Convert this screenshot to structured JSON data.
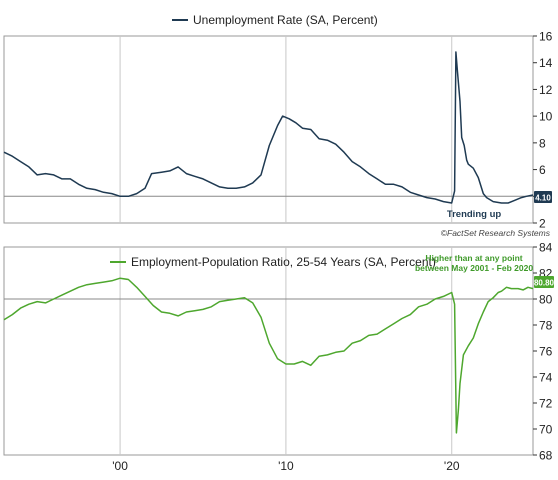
{
  "colors": {
    "unemployment": "#1f3a52",
    "epop": "#4ea72e",
    "epop_label": "#3f9a2a",
    "grid": "#c8c8c8",
    "axis": "#333333"
  },
  "source_note": "©FactSet Research Systems",
  "x_axis": {
    "ticks": [
      2000,
      2010,
      2020
    ],
    "tick_labels": [
      "'00",
      "'10",
      "'20"
    ]
  },
  "chart_data": [
    {
      "type": "line",
      "series": [
        {
          "name": "Unemployment Rate (SA, Percent)"
        }
      ],
      "ylim": [
        2,
        16
      ],
      "yticks": [
        2,
        4,
        6,
        8,
        10,
        12,
        14,
        16
      ],
      "xlim": [
        1993,
        2024.9
      ],
      "legend": "top-left",
      "grid": "vertical and y=4 reference line",
      "last_value_label": "4.10",
      "annotation": "Trending up",
      "x": [
        1993.0,
        1993.5,
        1994.0,
        1994.5,
        1995.0,
        1995.5,
        1996.0,
        1996.5,
        1997.0,
        1997.5,
        1998.0,
        1998.5,
        1999.0,
        1999.5,
        2000.0,
        2000.5,
        2001.0,
        2001.5,
        2001.9,
        2002.5,
        2003.0,
        2003.5,
        2004.0,
        2004.5,
        2005.0,
        2005.5,
        2006.0,
        2006.5,
        2007.0,
        2007.5,
        2008.0,
        2008.5,
        2009.0,
        2009.5,
        2009.8,
        2010.2,
        2010.6,
        2011.0,
        2011.5,
        2012.0,
        2012.5,
        2013.0,
        2013.5,
        2014.0,
        2014.5,
        2015.0,
        2015.5,
        2016.0,
        2016.5,
        2017.0,
        2017.5,
        2018.0,
        2018.5,
        2019.0,
        2019.5,
        2020.0,
        2020.17,
        2020.25,
        2020.35,
        2020.5,
        2020.6,
        2020.75,
        2020.9,
        2021.0,
        2021.3,
        2021.6,
        2021.9,
        2022.1,
        2022.5,
        2023.0,
        2023.4,
        2023.8,
        2024.2,
        2024.5,
        2024.9
      ],
      "y": [
        7.3,
        7.0,
        6.6,
        6.2,
        5.6,
        5.7,
        5.6,
        5.3,
        5.3,
        4.9,
        4.6,
        4.5,
        4.3,
        4.2,
        4.0,
        4.0,
        4.2,
        4.6,
        5.7,
        5.8,
        5.9,
        6.2,
        5.7,
        5.5,
        5.3,
        5.0,
        4.7,
        4.6,
        4.6,
        4.7,
        5.0,
        5.6,
        7.8,
        9.3,
        10.0,
        9.8,
        9.5,
        9.1,
        9.0,
        8.3,
        8.2,
        7.9,
        7.3,
        6.6,
        6.2,
        5.7,
        5.3,
        4.9,
        4.9,
        4.7,
        4.3,
        4.1,
        3.9,
        3.8,
        3.6,
        3.5,
        4.4,
        14.8,
        13.3,
        11.1,
        8.4,
        7.8,
        6.7,
        6.4,
        6.1,
        5.4,
        4.2,
        3.9,
        3.6,
        3.5,
        3.5,
        3.7,
        3.9,
        4.0,
        4.1
      ]
    },
    {
      "type": "line",
      "series": [
        {
          "name": "Employment-Population Ratio, 25-54 Years (SA, Percent)"
        }
      ],
      "ylim": [
        68,
        84
      ],
      "yticks": [
        68,
        70,
        72,
        74,
        76,
        78,
        80,
        82,
        84
      ],
      "xlim": [
        1993,
        2024.9
      ],
      "legend": "top-left",
      "grid": "vertical and y=80 reference line",
      "last_value_label": "80.80",
      "annotation": [
        "Higher than at any point",
        "between May 2001 - Feb 2020"
      ],
      "x": [
        1993.0,
        1993.5,
        1994.0,
        1994.5,
        1995.0,
        1995.5,
        1996.0,
        1996.5,
        1997.0,
        1997.5,
        1998.0,
        1998.5,
        1999.0,
        1999.5,
        2000.0,
        2000.5,
        2001.0,
        2001.5,
        2002.0,
        2002.5,
        2003.0,
        2003.5,
        2004.0,
        2004.5,
        2005.0,
        2005.5,
        2006.0,
        2006.5,
        2007.0,
        2007.5,
        2008.0,
        2008.5,
        2009.0,
        2009.5,
        2010.0,
        2010.5,
        2011.0,
        2011.5,
        2012.0,
        2012.5,
        2013.0,
        2013.5,
        2014.0,
        2014.5,
        2015.0,
        2015.5,
        2016.0,
        2016.5,
        2017.0,
        2017.5,
        2018.0,
        2018.5,
        2019.0,
        2019.5,
        2020.0,
        2020.17,
        2020.28,
        2020.4,
        2020.5,
        2020.7,
        2021.0,
        2021.3,
        2021.6,
        2021.9,
        2022.2,
        2022.5,
        2022.8,
        2023.0,
        2023.3,
        2023.6,
        2024.0,
        2024.3,
        2024.6,
        2024.9
      ],
      "y": [
        78.4,
        78.8,
        79.3,
        79.6,
        79.8,
        79.7,
        80.0,
        80.3,
        80.6,
        80.9,
        81.1,
        81.2,
        81.3,
        81.4,
        81.6,
        81.5,
        80.9,
        80.2,
        79.5,
        79.0,
        78.9,
        78.7,
        79.0,
        79.1,
        79.2,
        79.4,
        79.8,
        79.9,
        80.0,
        80.1,
        79.7,
        78.6,
        76.6,
        75.4,
        75.0,
        75.0,
        75.2,
        74.9,
        75.6,
        75.7,
        75.9,
        76.0,
        76.6,
        76.8,
        77.2,
        77.3,
        77.7,
        78.1,
        78.5,
        78.8,
        79.4,
        79.6,
        80.0,
        80.2,
        80.5,
        79.6,
        69.7,
        71.5,
        73.5,
        75.7,
        76.4,
        77.0,
        78.1,
        79.0,
        79.8,
        80.1,
        80.5,
        80.6,
        80.9,
        80.8,
        80.8,
        80.7,
        80.9,
        80.8
      ]
    }
  ]
}
